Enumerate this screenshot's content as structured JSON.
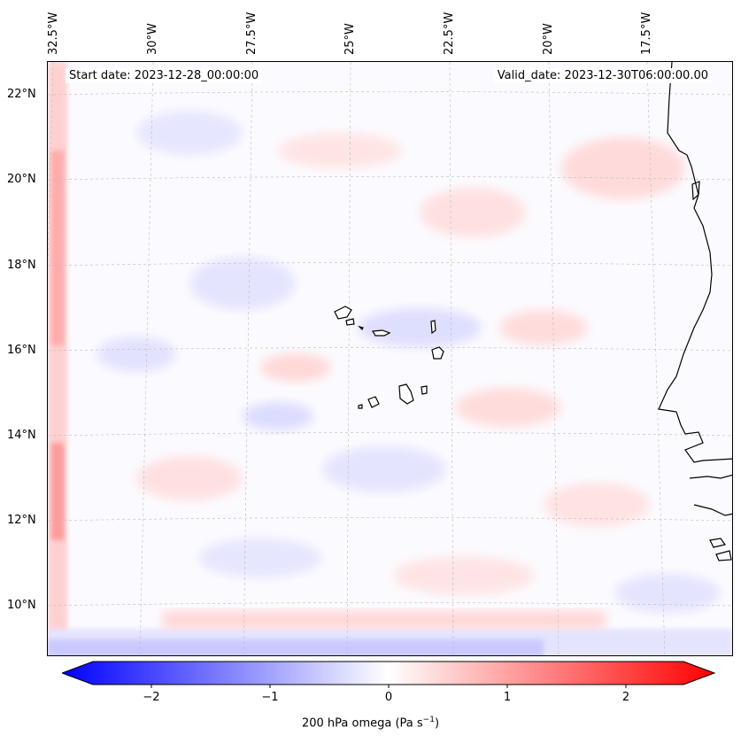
{
  "map": {
    "start_date": "Start date: 2023-12-28_00:00:00",
    "valid_date": "Valid_date: 2023-12-30T06:00:00.00",
    "lon_labels": [
      "32.5°W",
      "30°W",
      "27.5°W",
      "25°W",
      "22.5°W",
      "20°W",
      "17.5°W"
    ],
    "lat_labels": [
      "22°N",
      "20°N",
      "18°N",
      "16°N",
      "14°N",
      "12°N",
      "10°N"
    ],
    "colors": {
      "negative": "#0000ff",
      "zero": "#ffffff",
      "positive": "#ff0000",
      "coastline": "#000000",
      "gridline": "#bbbbbb"
    }
  },
  "colorbar": {
    "tick_labels": [
      "−2",
      "−1",
      "0",
      "1",
      "2"
    ],
    "range": [
      -2.7,
      2.7
    ],
    "label_prefix": "200 hPa omega (Pa s",
    "label_exp": "−1",
    "label_suffix": ")"
  }
}
